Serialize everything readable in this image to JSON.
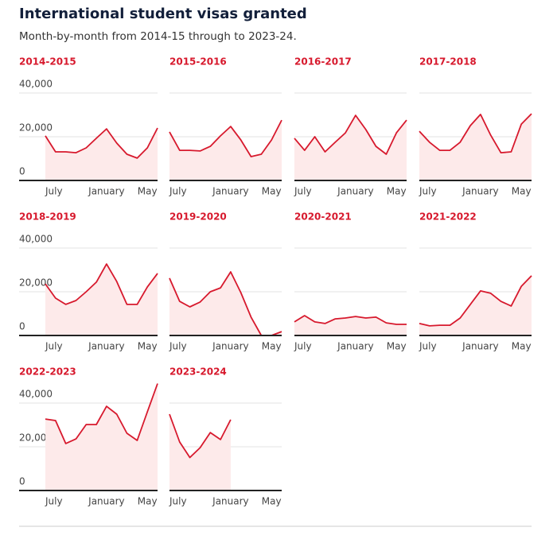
{
  "title": "International student visas granted",
  "subtitle": "Month-by-month from 2014-15 through to 2023-24.",
  "chart_data": [
    {
      "type": "area",
      "title": "2014-2015",
      "color": "#d7192d",
      "fill": "#fdeaea",
      "categories": [
        "July",
        null,
        null,
        null,
        null,
        null,
        "January",
        null,
        null,
        null,
        "May",
        null
      ],
      "values": [
        20400,
        13100,
        13100,
        12700,
        14900,
        19300,
        23600,
        17100,
        12000,
        10200,
        14900,
        24000
      ],
      "ylim": [
        0,
        50000
      ],
      "yticks": [
        0,
        {
          "value": 20000,
          "label": "20,000"
        },
        {
          "value": 40000,
          "label": "40,000"
        }
      ],
      "grid": true
    },
    {
      "type": "area",
      "title": "2015-2016",
      "color": "#d7192d",
      "fill": "#fdeaea",
      "categories": [
        "July",
        null,
        null,
        null,
        null,
        null,
        "January",
        null,
        null,
        null,
        "May",
        null
      ],
      "values": [
        22200,
        13800,
        13800,
        13500,
        15600,
        20400,
        24700,
        18500,
        10900,
        12000,
        18500,
        27600
      ],
      "ylim": [
        0,
        50000
      ],
      "yticks": [
        0,
        {
          "value": 20000,
          "label": "20,000"
        },
        {
          "value": 40000,
          "label": "40,000"
        }
      ],
      "grid": true
    },
    {
      "type": "area",
      "title": "2016-2017",
      "color": "#d7192d",
      "fill": "#fdeaea",
      "categories": [
        "July",
        null,
        null,
        null,
        null,
        null,
        "January",
        null,
        null,
        null,
        "May",
        null
      ],
      "values": [
        19300,
        13800,
        20000,
        13100,
        17500,
        21800,
        29800,
        23300,
        15600,
        12000,
        21800,
        27600
      ],
      "ylim": [
        0,
        50000
      ],
      "yticks": [
        0,
        {
          "value": 20000,
          "label": "20,000"
        },
        {
          "value": 40000,
          "label": "40,000"
        }
      ],
      "grid": true
    },
    {
      "type": "area",
      "title": "2017-2018",
      "color": "#d7192d",
      "fill": "#fdeaea",
      "categories": [
        "July",
        null,
        null,
        null,
        null,
        null,
        "January",
        null,
        null,
        null,
        "May",
        null
      ],
      "values": [
        22500,
        17500,
        13800,
        13800,
        17500,
        25100,
        30200,
        20700,
        12700,
        13100,
        25800,
        30500
      ],
      "ylim": [
        0,
        50000
      ],
      "yticks": [
        0,
        {
          "value": 20000,
          "label": "20,000"
        },
        {
          "value": 40000,
          "label": "40,000"
        }
      ],
      "grid": true
    },
    {
      "type": "area",
      "title": "2018-2019",
      "color": "#d7192d",
      "fill": "#fdeaea",
      "categories": [
        "July",
        null,
        null,
        null,
        null,
        null,
        "January",
        null,
        null,
        null,
        "May",
        null
      ],
      "values": [
        23600,
        17100,
        14200,
        16000,
        20000,
        24400,
        32700,
        24700,
        14200,
        14200,
        22200,
        28400
      ],
      "ylim": [
        0,
        50000
      ],
      "yticks": [
        0,
        {
          "value": 20000,
          "label": "20,000"
        },
        {
          "value": 40000,
          "label": "40,000"
        }
      ],
      "grid": true
    },
    {
      "type": "area",
      "title": "2019-2020",
      "color": "#d7192d",
      "fill": "#fdeaea",
      "categories": [
        "July",
        null,
        null,
        null,
        null,
        null,
        "January",
        null,
        null,
        null,
        "May",
        null
      ],
      "values": [
        26200,
        15600,
        13100,
        15300,
        20000,
        21800,
        29100,
        19600,
        8400,
        0,
        0,
        1800
      ],
      "ylim": [
        0,
        50000
      ],
      "yticks": [
        0,
        {
          "value": 20000,
          "label": "20,000"
        },
        {
          "value": 40000,
          "label": "40,000"
        }
      ],
      "grid": true
    },
    {
      "type": "area",
      "title": "2020-2021",
      "color": "#d7192d",
      "fill": "#fdeaea",
      "categories": [
        "July",
        null,
        null,
        null,
        null,
        null,
        "January",
        null,
        null,
        null,
        "May",
        null
      ],
      "values": [
        6200,
        9100,
        6200,
        5500,
        7600,
        8000,
        8700,
        8000,
        8400,
        5800,
        5100,
        5100
      ],
      "ylim": [
        0,
        50000
      ],
      "yticks": [
        0,
        {
          "value": 20000,
          "label": "20,000"
        },
        {
          "value": 40000,
          "label": "40,000"
        }
      ],
      "grid": true
    },
    {
      "type": "area",
      "title": "2021-2022",
      "color": "#d7192d",
      "fill": "#fdeaea",
      "categories": [
        "July",
        null,
        null,
        null,
        null,
        null,
        "January",
        null,
        null,
        null,
        "May",
        null
      ],
      "values": [
        5500,
        4400,
        4700,
        4700,
        8000,
        14200,
        20400,
        19300,
        15600,
        13500,
        22500,
        27300
      ],
      "ylim": [
        0,
        50000
      ],
      "yticks": [
        0,
        {
          "value": 20000,
          "label": "20,000"
        },
        {
          "value": 40000,
          "label": "40,000"
        }
      ],
      "grid": true
    },
    {
      "type": "area",
      "title": "2022-2023",
      "color": "#d7192d",
      "fill": "#fdeaea",
      "categories": [
        "July",
        null,
        null,
        null,
        null,
        null,
        "January",
        null,
        null,
        null,
        "May",
        null
      ],
      "values": [
        32700,
        32000,
        21500,
        23600,
        30200,
        30200,
        38500,
        34900,
        26200,
        22900,
        36000,
        48900
      ],
      "ylim": [
        0,
        50000
      ],
      "yticks": [
        0,
        {
          "value": 20000,
          "label": "20,000"
        },
        {
          "value": 40000,
          "label": "40,000"
        }
      ],
      "grid": true
    },
    {
      "type": "area",
      "title": "2023-2024",
      "color": "#d7192d",
      "fill": "#fdeaea",
      "categories": [
        "July",
        null,
        null,
        null,
        null,
        null,
        "January",
        null,
        null,
        null,
        "May",
        null
      ],
      "values": [
        34900,
        22200,
        15100,
        19600,
        26500,
        23300,
        32400,
        null,
        null,
        null,
        null,
        null
      ],
      "ylim": [
        0,
        50000
      ],
      "yticks": [
        0,
        {
          "value": 20000,
          "label": "20,000"
        },
        {
          "value": 40000,
          "label": "40,000"
        }
      ],
      "grid": true
    }
  ]
}
